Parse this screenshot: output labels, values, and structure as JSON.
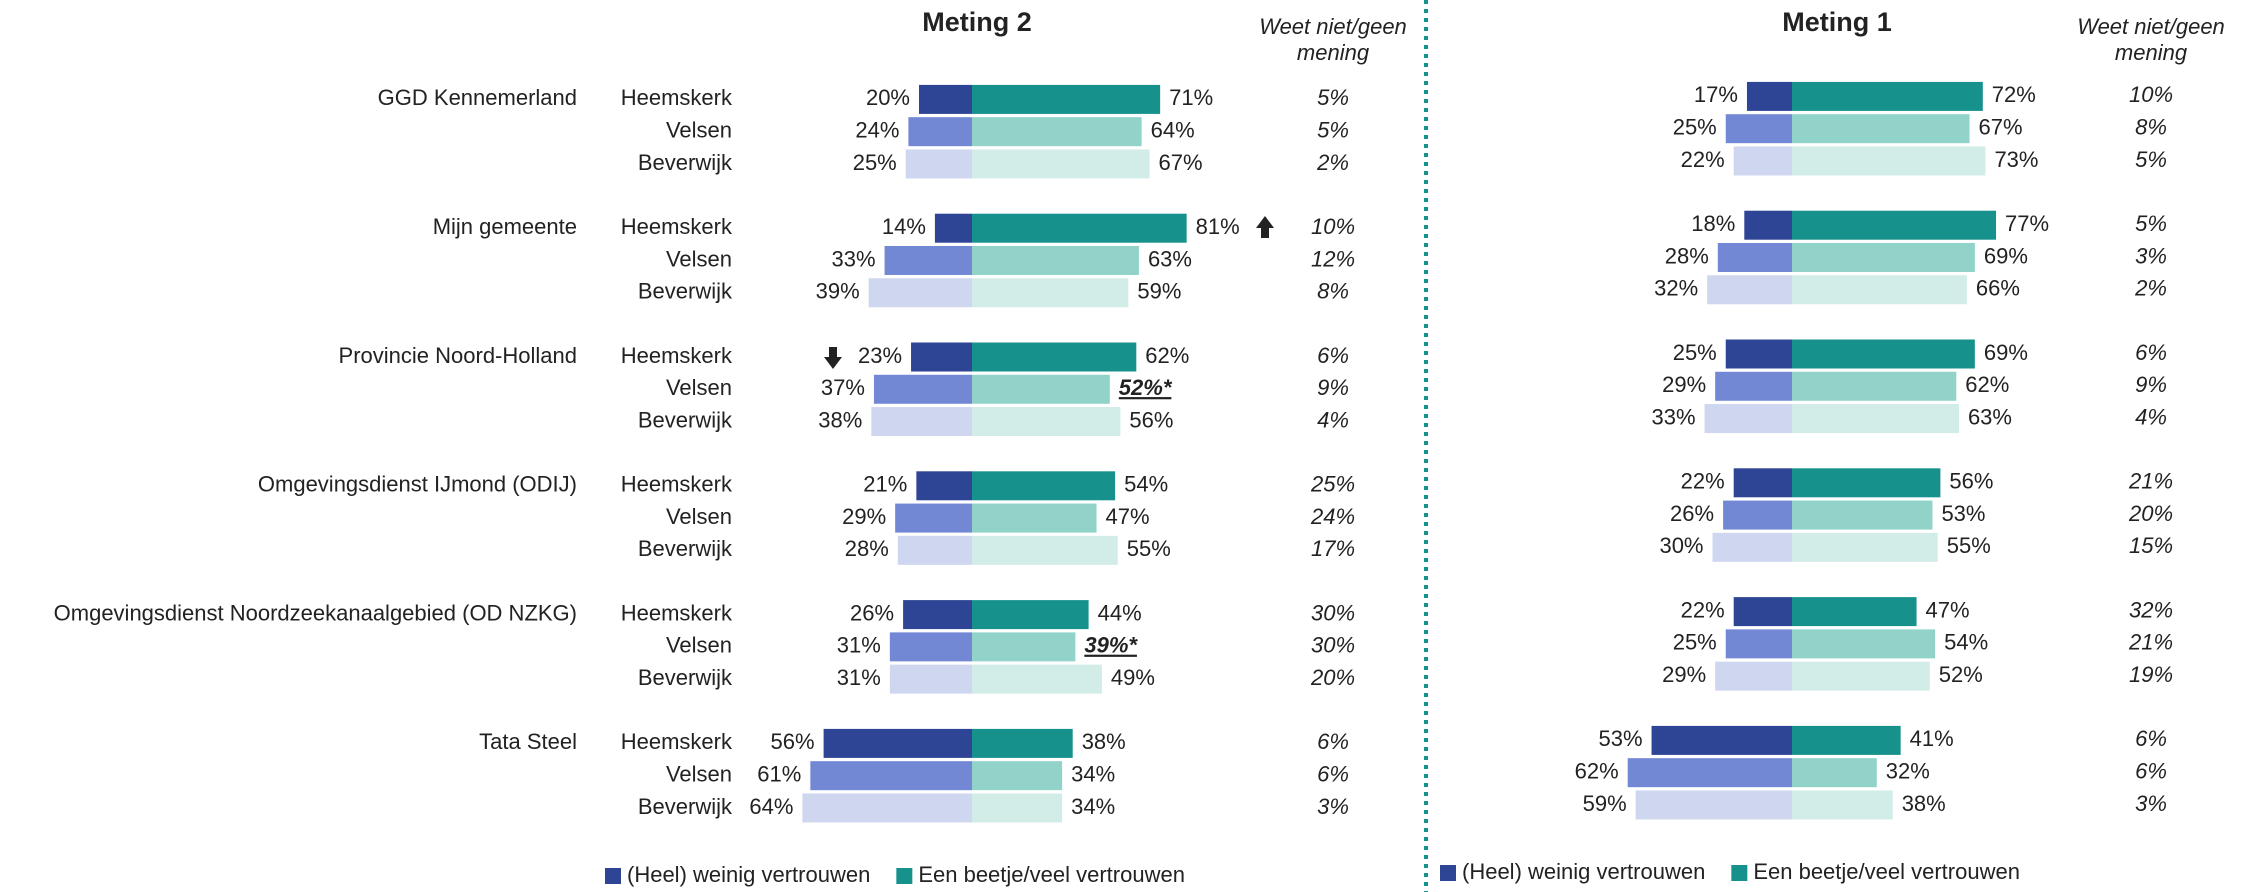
{
  "chart_data": [
    {
      "type": "diverging_bar",
      "title": "Meting 2",
      "dontknow_title": "Weet niet/geen mening",
      "groups": [
        "GGD Kennemerland",
        "Mijn gemeente",
        "Provincie Noord-Holland",
        "Omgevingsdienst IJmond (ODIJ)",
        "Omgevingsdienst Noordzeekanaalgebied (OD NZKG)",
        "Tata Steel"
      ],
      "categories": [
        "Heemskerk",
        "Velsen",
        "Beverwijk",
        "Heemskerk",
        "Velsen",
        "Beverwijk",
        "Heemskerk",
        "Velsen",
        "Beverwijk",
        "Heemskerk",
        "Velsen",
        "Beverwijk",
        "Heemskerk",
        "Velsen",
        "Beverwijk",
        "Heemskerk",
        "Velsen",
        "Beverwijk"
      ],
      "series": [
        {
          "name": "(Heel) weinig vertrouwen",
          "color": "#2e4494",
          "shades": [
            "#2e4494",
            "#7388d4",
            "#cfd6f0"
          ],
          "values": [
            20,
            24,
            25,
            14,
            33,
            39,
            23,
            37,
            38,
            21,
            29,
            28,
            26,
            31,
            31,
            56,
            61,
            64
          ],
          "value_labels": [
            "20%",
            "24%",
            "25%",
            "14%",
            "33%",
            "39%",
            "23%",
            "37%",
            "38%",
            "21%",
            "29%",
            "28%",
            "26%",
            "31%",
            "31%",
            "56%",
            "61%",
            "64%"
          ]
        },
        {
          "name": "Een beetje/veel vertrouwen",
          "color": "#17918c",
          "shades": [
            "#17918c",
            "#91d3c8",
            "#d2ece8"
          ],
          "values": [
            71,
            64,
            67,
            81,
            63,
            59,
            62,
            52,
            56,
            54,
            47,
            55,
            44,
            39,
            49,
            38,
            34,
            34
          ],
          "value_labels": [
            "71%",
            "64%",
            "67%",
            "81%",
            "63%",
            "59%",
            "62%",
            "52%*",
            "56%",
            "54%",
            "47%",
            "55%",
            "44%",
            "39%*",
            "49%",
            "38%",
            "34%",
            "34%"
          ],
          "highlighted": [
            7,
            13
          ]
        }
      ],
      "dontknow": {
        "values": [
          5,
          5,
          2,
          10,
          12,
          8,
          6,
          9,
          4,
          25,
          24,
          17,
          30,
          30,
          20,
          6,
          6,
          3
        ],
        "value_labels": [
          "5%",
          "5%",
          "2%",
          "10%",
          "12%",
          "8%",
          "6%",
          "9%",
          "4%",
          "25%",
          "24%",
          "17%",
          "30%",
          "30%",
          "20%",
          "6%",
          "6%",
          "3%"
        ]
      }
    },
    {
      "type": "diverging_bar",
      "title": "Meting 1",
      "dontknow_title": "Weet niet/geen mening",
      "series": [
        {
          "name": "(Heel) weinig vertrouwen",
          "color": "#2e4494",
          "shades": [
            "#2e4494",
            "#7388d4",
            "#cfd6f0"
          ],
          "values": [
            17,
            25,
            22,
            18,
            28,
            32,
            25,
            29,
            33,
            22,
            26,
            30,
            22,
            25,
            29,
            53,
            62,
            59
          ],
          "value_labels": [
            "17%",
            "25%",
            "22%",
            "18%",
            "28%",
            "32%",
            "25%",
            "29%",
            "33%",
            "22%",
            "26%",
            "30%",
            "22%",
            "25%",
            "29%",
            "53%",
            "62%",
            "59%"
          ]
        },
        {
          "name": "Een beetje/veel vertrouwen",
          "color": "#17918c",
          "shades": [
            "#17918c",
            "#91d3c8",
            "#d2ece8"
          ],
          "values": [
            72,
            67,
            73,
            77,
            69,
            66,
            69,
            62,
            63,
            56,
            53,
            55,
            47,
            54,
            52,
            41,
            32,
            38
          ],
          "value_labels": [
            "72%",
            "67%",
            "73%",
            "77%",
            "69%",
            "66%",
            "69%",
            "62%",
            "63%",
            "56%",
            "53%",
            "55%",
            "47%",
            "54%",
            "52%",
            "41%",
            "32%",
            "38%"
          ]
        }
      ],
      "dontknow": {
        "values": [
          10,
          8,
          5,
          5,
          3,
          2,
          6,
          9,
          4,
          21,
          20,
          15,
          32,
          21,
          19,
          6,
          6,
          3
        ],
        "value_labels": [
          "10%",
          "8%",
          "5%",
          "5%",
          "3%",
          "2%",
          "6%",
          "9%",
          "4%",
          "21%",
          "20%",
          "15%",
          "32%",
          "21%",
          "19%",
          "6%",
          "6%",
          "3%"
        ]
      }
    }
  ]
}
